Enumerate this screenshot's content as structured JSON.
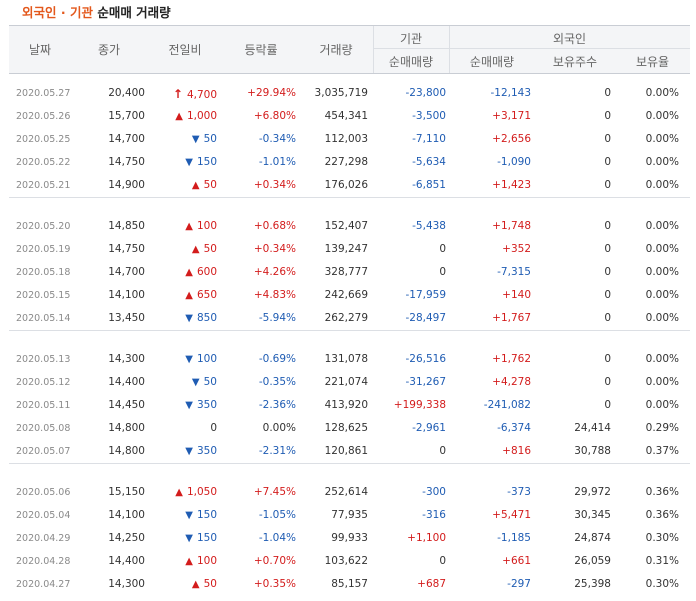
{
  "title": {
    "prefix": "외국인 · 기관",
    "suffix": "순매매 거래량"
  },
  "headers": {
    "date": "날짜",
    "close": "종가",
    "change": "전일비",
    "rate": "등락률",
    "volume": "거래량",
    "inst_group": "기관",
    "inst_net": "순매매량",
    "foreign_group": "외국인",
    "foreign_net": "순매매량",
    "foreign_shares": "보유주수",
    "foreign_ratio": "보유율"
  },
  "colors": {
    "up": "#d31c1c",
    "down": "#1f5cb3",
    "title_accent": "#e3581c"
  },
  "rows": [
    {
      "date": "2020.05.27",
      "close": "20,400",
      "change_dir": "upper",
      "change": "4,700",
      "rate": "+29.94%",
      "volume": "3,035,719",
      "inst": "-23,800",
      "foreign": "-12,143",
      "shares": "0",
      "ratio": "0.00%"
    },
    {
      "date": "2020.05.26",
      "close": "15,700",
      "change_dir": "up",
      "change": "1,000",
      "rate": "+6.80%",
      "volume": "454,341",
      "inst": "-3,500",
      "foreign": "+3,171",
      "shares": "0",
      "ratio": "0.00%"
    },
    {
      "date": "2020.05.25",
      "close": "14,700",
      "change_dir": "down",
      "change": "50",
      "rate": "-0.34%",
      "volume": "112,003",
      "inst": "-7,110",
      "foreign": "+2,656",
      "shares": "0",
      "ratio": "0.00%"
    },
    {
      "date": "2020.05.22",
      "close": "14,750",
      "change_dir": "down",
      "change": "150",
      "rate": "-1.01%",
      "volume": "227,298",
      "inst": "-5,634",
      "foreign": "-1,090",
      "shares": "0",
      "ratio": "0.00%"
    },
    {
      "date": "2020.05.21",
      "close": "14,900",
      "change_dir": "up",
      "change": "50",
      "rate": "+0.34%",
      "volume": "176,026",
      "inst": "-6,851",
      "foreign": "+1,423",
      "shares": "0",
      "ratio": "0.00%"
    },
    {
      "date": "2020.05.20",
      "close": "14,850",
      "change_dir": "up",
      "change": "100",
      "rate": "+0.68%",
      "volume": "152,407",
      "inst": "-5,438",
      "foreign": "+1,748",
      "shares": "0",
      "ratio": "0.00%"
    },
    {
      "date": "2020.05.19",
      "close": "14,750",
      "change_dir": "up",
      "change": "50",
      "rate": "+0.34%",
      "volume": "139,247",
      "inst": "0",
      "foreign": "+352",
      "shares": "0",
      "ratio": "0.00%"
    },
    {
      "date": "2020.05.18",
      "close": "14,700",
      "change_dir": "up",
      "change": "600",
      "rate": "+4.26%",
      "volume": "328,777",
      "inst": "0",
      "foreign": "-7,315",
      "shares": "0",
      "ratio": "0.00%"
    },
    {
      "date": "2020.05.15",
      "close": "14,100",
      "change_dir": "up",
      "change": "650",
      "rate": "+4.83%",
      "volume": "242,669",
      "inst": "-17,959",
      "foreign": "+140",
      "shares": "0",
      "ratio": "0.00%"
    },
    {
      "date": "2020.05.14",
      "close": "13,450",
      "change_dir": "down",
      "change": "850",
      "rate": "-5.94%",
      "volume": "262,279",
      "inst": "-28,497",
      "foreign": "+1,767",
      "shares": "0",
      "ratio": "0.00%"
    },
    {
      "date": "2020.05.13",
      "close": "14,300",
      "change_dir": "down",
      "change": "100",
      "rate": "-0.69%",
      "volume": "131,078",
      "inst": "-26,516",
      "foreign": "+1,762",
      "shares": "0",
      "ratio": "0.00%"
    },
    {
      "date": "2020.05.12",
      "close": "14,400",
      "change_dir": "down",
      "change": "50",
      "rate": "-0.35%",
      "volume": "221,074",
      "inst": "-31,267",
      "foreign": "+4,278",
      "shares": "0",
      "ratio": "0.00%"
    },
    {
      "date": "2020.05.11",
      "close": "14,450",
      "change_dir": "down",
      "change": "350",
      "rate": "-2.36%",
      "volume": "413,920",
      "inst": "+199,338",
      "foreign": "-241,082",
      "shares": "0",
      "ratio": "0.00%"
    },
    {
      "date": "2020.05.08",
      "close": "14,800",
      "change_dir": "none",
      "change": "0",
      "rate": "0.00%",
      "volume": "128,625",
      "inst": "-2,961",
      "foreign": "-6,374",
      "shares": "24,414",
      "ratio": "0.29%"
    },
    {
      "date": "2020.05.07",
      "close": "14,800",
      "change_dir": "down",
      "change": "350",
      "rate": "-2.31%",
      "volume": "120,861",
      "inst": "0",
      "foreign": "+816",
      "shares": "30,788",
      "ratio": "0.37%"
    },
    {
      "date": "2020.05.06",
      "close": "15,150",
      "change_dir": "up",
      "change": "1,050",
      "rate": "+7.45%",
      "volume": "252,614",
      "inst": "-300",
      "foreign": "-373",
      "shares": "29,972",
      "ratio": "0.36%"
    },
    {
      "date": "2020.05.04",
      "close": "14,100",
      "change_dir": "down",
      "change": "150",
      "rate": "-1.05%",
      "volume": "77,935",
      "inst": "-316",
      "foreign": "+5,471",
      "shares": "30,345",
      "ratio": "0.36%"
    },
    {
      "date": "2020.04.29",
      "close": "14,250",
      "change_dir": "down",
      "change": "150",
      "rate": "-1.04%",
      "volume": "99,933",
      "inst": "+1,100",
      "foreign": "-1,185",
      "shares": "24,874",
      "ratio": "0.30%"
    },
    {
      "date": "2020.04.28",
      "close": "14,400",
      "change_dir": "up",
      "change": "100",
      "rate": "+0.70%",
      "volume": "103,622",
      "inst": "0",
      "foreign": "+661",
      "shares": "26,059",
      "ratio": "0.31%"
    },
    {
      "date": "2020.04.27",
      "close": "14,300",
      "change_dir": "up",
      "change": "50",
      "rate": "+0.35%",
      "volume": "85,157",
      "inst": "+687",
      "foreign": "-297",
      "shares": "25,398",
      "ratio": "0.30%"
    }
  ]
}
